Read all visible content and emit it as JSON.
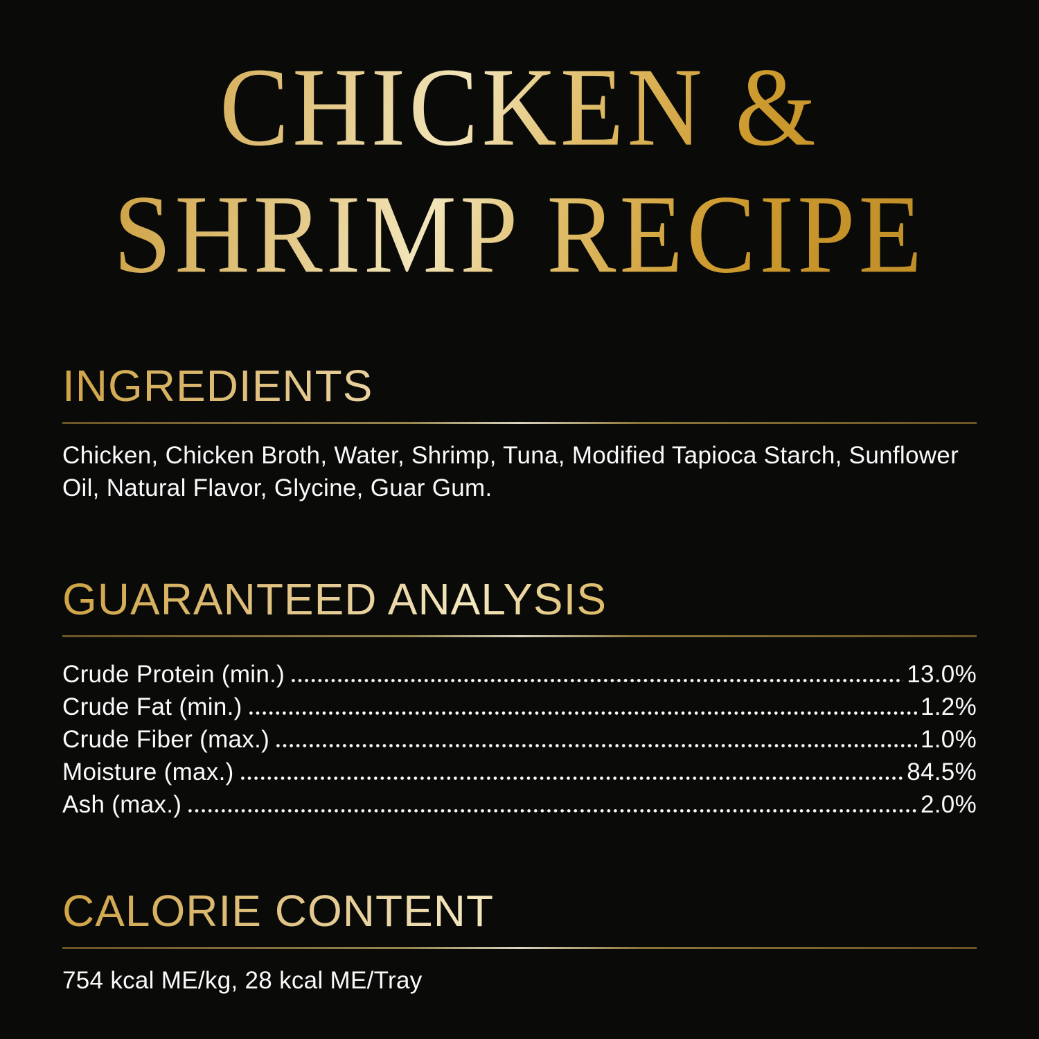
{
  "colors": {
    "background": "#0a0a09",
    "gold_highlight": "#f2e5ba",
    "gold_mid": "#d5a742",
    "gold_dark": "#bd8a26",
    "rule_bronze": "#6b5526",
    "rule_highlight": "#d9d4c0",
    "body_text": "#fafafa"
  },
  "title": {
    "line1": "CHICKEN &",
    "line2": "SHRIMP RECIPE"
  },
  "ingredients": {
    "heading": "INGREDIENTS",
    "text": "Chicken, Chicken Broth, Water, Shrimp, Tuna, Modified Tapioca Starch, Sunflower Oil, Natural Flavor, Glycine, Guar Gum."
  },
  "guaranteed_analysis": {
    "heading": "GUARANTEED ANALYSIS",
    "rows": [
      {
        "label": "Crude Protein (min.)",
        "value": "13.0%"
      },
      {
        "label": "Crude Fat (min.)",
        "value": "1.2%"
      },
      {
        "label": "Crude Fiber (max.)",
        "value": "1.0%"
      },
      {
        "label": "Moisture (max.)",
        "value": "84.5%"
      },
      {
        "label": "Ash (max.)",
        "value": "2.0%"
      }
    ]
  },
  "calorie_content": {
    "heading": "CALORIE CONTENT",
    "text": "754 kcal ME/kg, 28 kcal ME/Tray"
  }
}
